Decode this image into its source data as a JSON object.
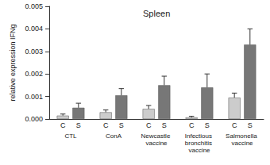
{
  "chart_data": {
    "type": "bar",
    "title": "Spleen",
    "y_label": "relative expression IFNg",
    "categories": [
      "CTL",
      "ConA",
      "Newcastle vaccine",
      "Infectious bronchitis vaccine",
      "Salmonella vaccine"
    ],
    "series": [
      {
        "name": "C",
        "color": "#cccccc",
        "values": [
          0.00015,
          0.0003,
          0.00045,
          7e-05,
          0.00095
        ],
        "errors": [
          7e-05,
          0.0001,
          0.00015,
          5e-05,
          0.0002
        ]
      },
      {
        "name": "S",
        "color": "#777777",
        "values": [
          0.0005,
          0.00105,
          0.0015,
          0.0014,
          0.0033
        ],
        "errors": [
          0.0002,
          0.0003,
          0.0004,
          0.0006,
          0.0007
        ]
      }
    ],
    "ylim": [
      0,
      0.005
    ],
    "yticks": [
      {
        "value": 0,
        "label": "0.000"
      },
      {
        "value": 0.001,
        "label": "0.001"
      },
      {
        "value": 0.002,
        "label": "0.002"
      },
      {
        "value": 0.003,
        "label": "0.003"
      },
      {
        "value": 0.004,
        "label": "0.004"
      },
      {
        "value": 0.005,
        "label": "0.005"
      }
    ],
    "grid": false
  }
}
